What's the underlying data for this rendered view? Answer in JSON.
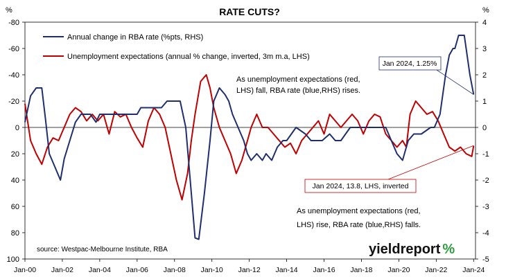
{
  "chart_data": {
    "type": "line",
    "title": "RATE CUTS?",
    "left_axis": {
      "ylim": [
        -80,
        100
      ],
      "inverted": true,
      "ticks": [
        -80,
        -60,
        -40,
        -20,
        0,
        20,
        40,
        60,
        80,
        100
      ],
      "tick_labels": [
        "-80",
        "-60",
        "-40",
        "-20",
        "0",
        "20",
        "40",
        "60",
        "80",
        "100"
      ],
      "corner_label": "%"
    },
    "right_axis": {
      "ylim": [
        -5,
        4
      ],
      "ticks": [
        4,
        3,
        2,
        1,
        0,
        -1,
        -2,
        -3,
        -4,
        -5
      ],
      "tick_labels": [
        "4",
        "3",
        "2",
        "1",
        "0",
        "-1",
        "-2",
        "-3",
        "-4",
        "-5"
      ],
      "corner_label": "%"
    },
    "x_axis": {
      "xlim": [
        2000.0,
        2024.1
      ],
      "ticks": [
        2000,
        2002,
        2004,
        2006,
        2008,
        2010,
        2012,
        2014,
        2016,
        2018,
        2020,
        2022,
        2024
      ],
      "tick_labels": [
        "Jan-00",
        "Jan-02",
        "Jan-04",
        "Jan-06",
        "Jan-08",
        "Jan-10",
        "Jan-12",
        "Jan-14",
        "Jan-16",
        "Jan-18",
        "Jan-20",
        "Jan-22",
        "Jan-24"
      ]
    },
    "grid": false,
    "legend_position": "top-left",
    "series": [
      {
        "name": "Annual change in RBA rate (%pts, RHS)",
        "axis": "right",
        "color": "#1f2f6e",
        "x": [
          2000.0,
          2000.3,
          2000.6,
          2000.9,
          2001.1,
          2001.3,
          2001.6,
          2001.9,
          2002.1,
          2002.4,
          2002.7,
          2003.0,
          2003.5,
          2003.8,
          2004.0,
          2004.5,
          2005.0,
          2005.3,
          2005.6,
          2006.0,
          2006.2,
          2006.4,
          2006.7,
          2007.0,
          2007.3,
          2007.6,
          2007.9,
          2008.3,
          2008.6,
          2008.9,
          2009.1,
          2009.3,
          2009.6,
          2009.9,
          2010.1,
          2010.4,
          2010.7,
          2010.9,
          2011.1,
          2011.4,
          2011.7,
          2011.9,
          2012.1,
          2012.4,
          2012.7,
          2012.9,
          2013.2,
          2013.5,
          2013.8,
          2014.0,
          2014.5,
          2015.0,
          2015.3,
          2015.6,
          2015.9,
          2016.3,
          2016.6,
          2016.9,
          2017.4,
          2017.9,
          2018.4,
          2018.9,
          2019.3,
          2019.6,
          2019.9,
          2020.2,
          2020.5,
          2020.8,
          2021.2,
          2021.7,
          2021.9,
          2022.2,
          2022.5,
          2022.7,
          2022.9,
          2023.0,
          2023.2,
          2023.5,
          2023.8,
          2024.0
        ],
        "y": [
          0.2,
          1.2,
          1.5,
          1.5,
          0.3,
          -1.0,
          -1.5,
          -2.0,
          -1.2,
          -0.5,
          0.2,
          0.5,
          0.5,
          0.2,
          0.5,
          0.5,
          0.5,
          0.5,
          0.5,
          0.5,
          0.75,
          0.75,
          0.75,
          0.75,
          0.75,
          1.0,
          1.0,
          1.0,
          0.0,
          -2.5,
          -4.2,
          -4.25,
          -2.5,
          -0.5,
          1.0,
          1.5,
          1.25,
          1.0,
          0.5,
          0.0,
          -0.5,
          -1.0,
          -1.25,
          -1.0,
          -1.25,
          -1.0,
          -1.25,
          -0.75,
          -0.5,
          -0.5,
          0.0,
          -0.25,
          -0.5,
          -0.5,
          -0.5,
          -0.25,
          -0.5,
          -0.5,
          0.0,
          0.0,
          0.0,
          0.0,
          0.0,
          -0.5,
          -1.0,
          -1.25,
          -0.5,
          -0.25,
          -0.25,
          0.0,
          0.0,
          0.5,
          2.0,
          2.75,
          3.0,
          3.0,
          3.5,
          3.5,
          2.0,
          1.25
        ]
      },
      {
        "name": "Unemployment expectations (annual % change, inverted, 3m m.a, LHS)",
        "axis": "left",
        "color": "#c00000",
        "x": [
          2000.0,
          2000.3,
          2000.6,
          2000.9,
          2001.2,
          2001.5,
          2001.8,
          2002.1,
          2002.4,
          2002.7,
          2003.0,
          2003.3,
          2003.6,
          2003.9,
          2004.2,
          2004.5,
          2004.8,
          2005.1,
          2005.4,
          2005.7,
          2006.0,
          2006.3,
          2006.6,
          2006.9,
          2007.2,
          2007.5,
          2007.8,
          2008.1,
          2008.4,
          2008.7,
          2008.9,
          2009.1,
          2009.4,
          2009.7,
          2009.9,
          2010.1,
          2010.4,
          2010.7,
          2011.0,
          2011.3,
          2011.6,
          2011.9,
          2012.1,
          2012.4,
          2012.7,
          2013.0,
          2013.3,
          2013.6,
          2013.9,
          2014.2,
          2014.5,
          2014.8,
          2015.1,
          2015.4,
          2015.7,
          2016.0,
          2016.3,
          2016.6,
          2016.9,
          2017.2,
          2017.5,
          2017.8,
          2018.1,
          2018.4,
          2018.7,
          2019.0,
          2019.3,
          2019.6,
          2019.9,
          2020.2,
          2020.4,
          2020.6,
          2020.9,
          2021.2,
          2021.5,
          2021.8,
          2022.1,
          2022.4,
          2022.7,
          2023.0,
          2023.3,
          2023.6,
          2023.9,
          2024.0
        ],
        "y": [
          -18,
          10,
          20,
          28,
          15,
          8,
          10,
          0,
          -10,
          -15,
          -12,
          -5,
          -10,
          -5,
          -10,
          5,
          -12,
          -8,
          -10,
          0,
          8,
          15,
          -5,
          -15,
          -10,
          0,
          20,
          40,
          55,
          35,
          10,
          -10,
          -35,
          -40,
          -30,
          -15,
          0,
          10,
          20,
          35,
          25,
          10,
          0,
          -10,
          0,
          0,
          5,
          10,
          15,
          12,
          20,
          10,
          5,
          0,
          -5,
          5,
          -10,
          -5,
          0,
          -5,
          -10,
          -5,
          5,
          -5,
          -10,
          -8,
          5,
          10,
          15,
          10,
          15,
          -10,
          -20,
          -15,
          -10,
          -12,
          -5,
          5,
          15,
          18,
          15,
          20,
          22,
          14
        ]
      }
    ],
    "annotations": [
      {
        "text": "As unemployment expectations (red, LHS) fall, RBA rate (blue,RHS) rises.",
        "lines": [
          "As unemployment expectations (red,",
          "LHS) fall, RBA rate (blue,RHS) rises."
        ]
      },
      {
        "text": "As unemployment expectations (red, LHS) rise, RBA rate (blue,RHS) falls.",
        "lines": [
          "As unemployment expectations (red,",
          "LHS) rise, RBA rate (blue,RHS) falls."
        ]
      },
      {
        "text": "Jan 2024, 1.25%",
        "color": "#1f2f6e",
        "point": [
          2024.0,
          1.25
        ],
        "axis": "right"
      },
      {
        "text": "Jan 2024, 13.8, LHS, inverted",
        "color": "#c00000",
        "point": [
          2024.0,
          13.8
        ],
        "axis": "left"
      }
    ],
    "source": "source: Westpac-Melbourne Institute, RBA",
    "logo": "yieldreport",
    "logo_suffix": "%"
  }
}
